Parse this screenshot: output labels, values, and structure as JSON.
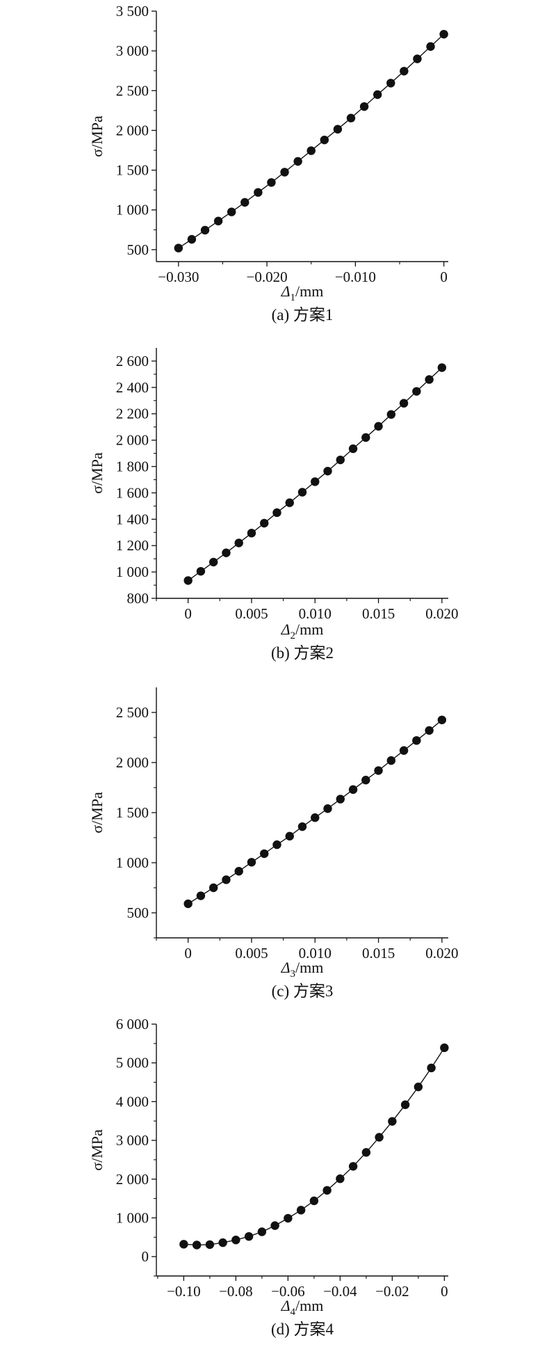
{
  "chart_data": [
    {
      "type": "line",
      "caption": "(a) 方案1",
      "ylabel": "σ/MPa",
      "xlabel": {
        "symbol": "Δ",
        "sub": "1",
        "unit": "/mm"
      },
      "xlim": [
        -0.0325,
        0.0005
      ],
      "ylim": [
        350,
        3500
      ],
      "xticks": [
        -0.03,
        -0.02,
        -0.01,
        0
      ],
      "xtick_labels": [
        "−0.030",
        "−0.020",
        "−0.010",
        "0"
      ],
      "yticks": [
        500,
        1000,
        1500,
        2000,
        2500,
        3000,
        3500
      ],
      "ytick_labels": [
        "500",
        "1 000",
        "1 500",
        "2 000",
        "2 500",
        "3 000",
        "3 500"
      ],
      "series": [
        {
          "marker": "circle",
          "color": "#111111",
          "x": [
            -0.03,
            -0.0285,
            -0.027,
            -0.0255,
            -0.024,
            -0.0225,
            -0.021,
            -0.0195,
            -0.018,
            -0.0165,
            -0.015,
            -0.0135,
            -0.012,
            -0.0105,
            -0.009,
            -0.0075,
            -0.006,
            -0.0045,
            -0.003,
            -0.0015,
            0
          ],
          "y": [
            520,
            630,
            745,
            860,
            975,
            1095,
            1220,
            1345,
            1475,
            1610,
            1745,
            1880,
            2015,
            2155,
            2300,
            2450,
            2595,
            2745,
            2900,
            3055,
            3210
          ]
        }
      ]
    },
    {
      "type": "line",
      "caption": "(b) 方案2",
      "ylabel": "σ/MPa",
      "xlabel": {
        "symbol": "Δ",
        "sub": "2",
        "unit": "/mm"
      },
      "xlim": [
        -0.0025,
        0.0205
      ],
      "ylim": [
        800,
        2700
      ],
      "xticks": [
        0,
        0.005,
        0.01,
        0.015,
        0.02
      ],
      "xtick_labels": [
        "0",
        "0.005",
        "0.010",
        "0.015",
        "0.020"
      ],
      "yticks": [
        800,
        1000,
        1200,
        1400,
        1600,
        1800,
        2000,
        2200,
        2400,
        2600
      ],
      "ytick_labels": [
        "800",
        "1 000",
        "1 200",
        "1 400",
        "1 600",
        "1 800",
        "2 000",
        "2 200",
        "2 400",
        "2 600"
      ],
      "series": [
        {
          "marker": "circle",
          "color": "#111111",
          "x": [
            0,
            0.001,
            0.002,
            0.003,
            0.004,
            0.005,
            0.006,
            0.007,
            0.008,
            0.009,
            0.01,
            0.011,
            0.012,
            0.013,
            0.014,
            0.015,
            0.016,
            0.017,
            0.018,
            0.019,
            0.02
          ],
          "y": [
            935,
            1005,
            1075,
            1145,
            1220,
            1295,
            1370,
            1450,
            1525,
            1605,
            1685,
            1765,
            1850,
            1935,
            2020,
            2105,
            2195,
            2280,
            2370,
            2460,
            2550
          ]
        }
      ]
    },
    {
      "type": "line",
      "caption": "(c) 方案3",
      "ylabel": "σ/MPa",
      "xlabel": {
        "symbol": "Δ",
        "sub": "3",
        "unit": "/mm"
      },
      "xlim": [
        -0.0025,
        0.0205
      ],
      "ylim": [
        250,
        2750
      ],
      "xticks": [
        0,
        0.005,
        0.01,
        0.015,
        0.02
      ],
      "xtick_labels": [
        "0",
        "0.005",
        "0.010",
        "0.015",
        "0.020"
      ],
      "yticks": [
        500,
        1000,
        1500,
        2000,
        2500
      ],
      "ytick_labels": [
        "500",
        "1 000",
        "1 500",
        "2 000",
        "2 500"
      ],
      "series": [
        {
          "marker": "circle",
          "color": "#111111",
          "x": [
            0,
            0.001,
            0.002,
            0.003,
            0.004,
            0.005,
            0.006,
            0.007,
            0.008,
            0.009,
            0.01,
            0.011,
            0.012,
            0.013,
            0.014,
            0.015,
            0.016,
            0.017,
            0.018,
            0.019,
            0.02
          ],
          "y": [
            590,
            670,
            750,
            830,
            915,
            1005,
            1090,
            1180,
            1265,
            1360,
            1450,
            1540,
            1635,
            1730,
            1825,
            1920,
            2020,
            2120,
            2220,
            2320,
            2425
          ]
        }
      ]
    },
    {
      "type": "line",
      "caption": "(d) 方案4",
      "ylabel": "σ/MPa",
      "xlabel": {
        "symbol": "Δ",
        "sub": "4",
        "unit": "/mm"
      },
      "xlim": [
        -0.1105,
        0.0015
      ],
      "ylim": [
        -500,
        6000
      ],
      "xticks": [
        -0.1,
        -0.08,
        -0.06,
        -0.04,
        -0.02,
        0
      ],
      "xtick_labels": [
        "−0.10",
        "−0.08",
        "−0.06",
        "−0.04",
        "−0.02",
        "0"
      ],
      "yticks": [
        0,
        1000,
        2000,
        3000,
        4000,
        5000,
        6000
      ],
      "ytick_labels": [
        "0",
        "1 000",
        "2 000",
        "3 000",
        "4 000",
        "5 000",
        "6 000"
      ],
      "series": [
        {
          "marker": "circle",
          "color": "#111111",
          "x": [
            -0.1,
            -0.095,
            -0.09,
            -0.085,
            -0.08,
            -0.075,
            -0.07,
            -0.065,
            -0.06,
            -0.055,
            -0.05,
            -0.045,
            -0.04,
            -0.035,
            -0.03,
            -0.025,
            -0.02,
            -0.015,
            -0.01,
            -0.005,
            0
          ],
          "y": [
            320,
            300,
            310,
            360,
            430,
            520,
            640,
            800,
            990,
            1200,
            1440,
            1710,
            2010,
            2330,
            2690,
            3080,
            3490,
            3920,
            4380,
            4870,
            5390
          ]
        }
      ]
    }
  ]
}
